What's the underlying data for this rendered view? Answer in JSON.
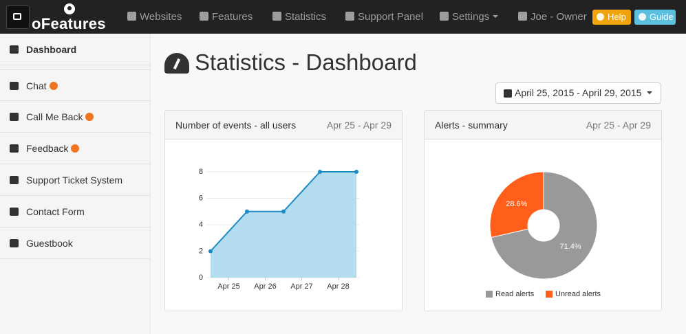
{
  "navbar": {
    "brand": "oFeatures",
    "items": [
      "Websites",
      "Features",
      "Statistics",
      "Support Panel",
      "Settings"
    ],
    "user": "Joe - Owner",
    "help": "Help",
    "guide": "Guide"
  },
  "sidebar": {
    "items": [
      "Dashboard",
      "Chat",
      "Call Me Back",
      "Feedback",
      "Support Ticket System",
      "Contact Form",
      "Guestbook"
    ]
  },
  "page": {
    "title": "Statistics - Dashboard",
    "date_range": "April 25, 2015 - April 29, 2015"
  },
  "panels": [
    {
      "title": "Number of events - all users",
      "range": "Apr 25 - Apr 29"
    },
    {
      "title": "Alerts - summary",
      "range": "Apr 25 - Apr 29"
    }
  ],
  "chart_data": [
    {
      "type": "line",
      "x": [
        0,
        1,
        2,
        3,
        4
      ],
      "xlim": [
        0,
        4
      ],
      "xticks": [
        {
          "value": 0.5,
          "label": "Apr 25"
        },
        {
          "value": 1.5,
          "label": "Apr 26"
        },
        {
          "value": 2.5,
          "label": "Apr 27"
        },
        {
          "value": 3.5,
          "label": "Apr 28"
        }
      ],
      "series": [
        {
          "color": "#1a8bc4",
          "fill": "#b3dcee",
          "values": [
            2,
            5,
            5,
            8,
            8
          ]
        }
      ],
      "ylim": [
        0,
        8
      ],
      "yticks": [
        0,
        2,
        4,
        6,
        8
      ],
      "grid": true
    },
    {
      "type": "pie",
      "categories": [
        "Read alerts",
        "Unread alerts"
      ],
      "values": [
        71.4,
        28.6
      ],
      "value_labels": [
        "71.4%",
        "28.6%"
      ],
      "colors": [
        "#999999",
        "#ff5f1a"
      ],
      "legend": "bottom"
    }
  ]
}
